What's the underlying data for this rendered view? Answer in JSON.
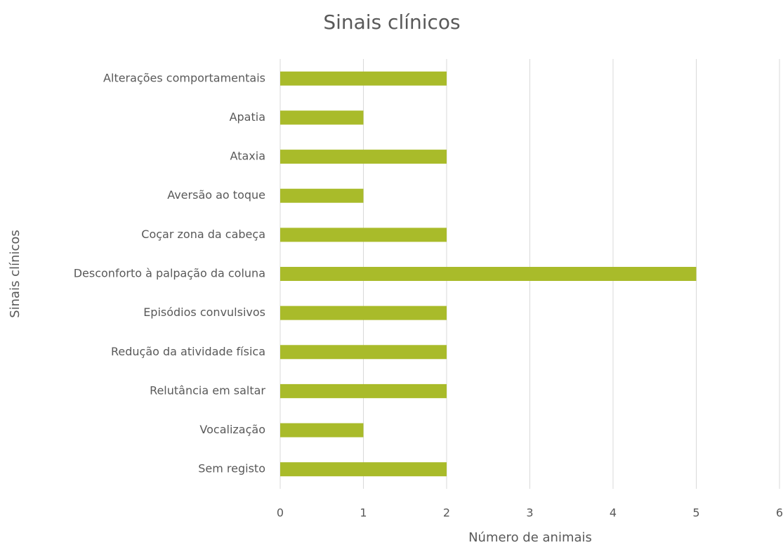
{
  "chart_data": {
    "type": "bar",
    "orientation": "horizontal",
    "title": "Sinais clínicos",
    "x_label": "Número de animais",
    "y_label": "Sinais clínicos",
    "categories": [
      "Alterações comportamentais",
      "Apatia",
      "Ataxia",
      "Aversão ao toque",
      "Coçar zona da cabeça",
      "Desconforto à palpação da coluna",
      "Episódios convulsivos",
      "Redução da atividade física",
      "Relutância em saltar",
      "Vocalização",
      "Sem registo"
    ],
    "values": [
      2,
      1,
      2,
      1,
      2,
      5,
      2,
      2,
      2,
      1,
      2
    ],
    "color": "#a9bb2a",
    "xlim": [
      0,
      6
    ],
    "xticks": [
      0,
      1,
      2,
      3,
      4,
      5,
      6
    ],
    "grid": true
  }
}
